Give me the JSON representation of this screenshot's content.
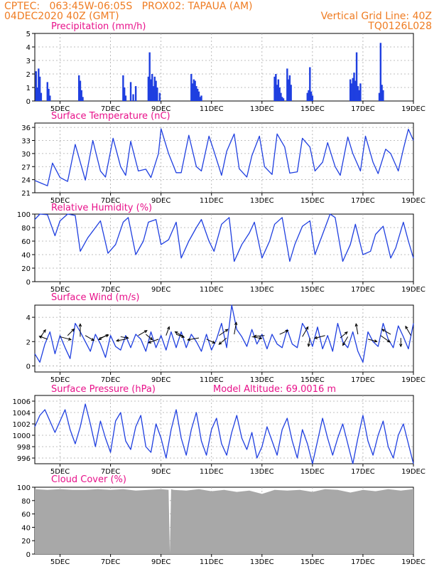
{
  "header": {
    "line1": "CPTEC:   063:45W-06:05S   PROX02: TAPAUA (AM)",
    "date": "04DEC2020 40Z (GMT)",
    "grid_note": "Vertical Grid Line: 40Z",
    "code": "TQ0126L028"
  },
  "colors": {
    "header": "#ef7c22",
    "panel_title": "#e8118a",
    "series": "#1f3fe0",
    "cloud": "#a8a8a8",
    "grid": "#aaaaaa"
  },
  "x_ticks": [
    "5DEC",
    "7DEC",
    "9DEC",
    "11DEC",
    "13DEC",
    "15DEC",
    "17DEC",
    "19DEC"
  ],
  "chart_data": [
    {
      "id": "precip",
      "type": "bar",
      "title": "Precipitation (mm/h)",
      "ylim": [
        0,
        5
      ],
      "yticks": [
        0,
        1,
        2,
        3,
        4,
        5
      ],
      "xrange": [
        4.0,
        19.0
      ],
      "x": [
        4.05,
        4.1,
        4.15,
        4.2,
        4.25,
        4.5,
        4.55,
        4.6,
        5.75,
        5.8,
        5.85,
        5.9,
        7.5,
        7.55,
        7.6,
        7.8,
        7.9,
        8.0,
        8.5,
        8.55,
        8.6,
        8.65,
        8.7,
        8.75,
        8.8,
        8.85,
        8.95,
        10.2,
        10.25,
        10.3,
        10.35,
        10.4,
        10.45,
        10.5,
        10.55,
        10.6,
        13.5,
        13.55,
        13.6,
        13.65,
        13.7,
        13.75,
        13.8,
        13.85,
        14.0,
        14.05,
        14.1,
        14.15,
        14.8,
        14.85,
        14.9,
        14.95,
        15.0,
        16.5,
        16.55,
        16.6,
        16.65,
        16.7,
        16.75,
        16.8,
        16.85,
        16.9,
        17.65,
        17.7,
        17.75,
        17.8
      ],
      "values": [
        2.2,
        1.0,
        2.4,
        1.8,
        0.6,
        1.4,
        0.9,
        0.4,
        1.9,
        1.5,
        0.8,
        0.3,
        1.9,
        1.0,
        0.4,
        1.4,
        0.5,
        1.1,
        1.8,
        3.6,
        1.6,
        2.0,
        1.1,
        1.8,
        1.5,
        1.0,
        0.6,
        2.0,
        1.3,
        1.6,
        1.5,
        1.1,
        0.9,
        0.7,
        0.3,
        0.4,
        1.8,
        2.0,
        1.2,
        1.6,
        1.0,
        0.6,
        0.3,
        0.2,
        2.4,
        1.6,
        1.9,
        1.2,
        0.6,
        0.8,
        2.5,
        0.7,
        0.4,
        1.6,
        1.3,
        1.7,
        2.1,
        1.5,
        3.6,
        1.1,
        0.8,
        1.3,
        0.6,
        4.3,
        1.2,
        0.8
      ]
    },
    {
      "id": "temp",
      "type": "line",
      "title": "Surface Temperature (nC)",
      "ylim": [
        21,
        37
      ],
      "yticks": [
        21,
        24,
        27,
        30,
        33,
        36
      ],
      "xrange": [
        4.0,
        19.0
      ],
      "x": [
        4.0,
        4.25,
        4.5,
        4.7,
        5.0,
        5.3,
        5.6,
        5.8,
        6.0,
        6.3,
        6.6,
        6.8,
        7.1,
        7.4,
        7.6,
        7.8,
        8.1,
        8.4,
        8.6,
        8.9,
        9.0,
        9.3,
        9.6,
        9.8,
        10.1,
        10.4,
        10.6,
        10.9,
        11.1,
        11.4,
        11.6,
        11.9,
        12.1,
        12.4,
        12.6,
        12.9,
        13.1,
        13.4,
        13.6,
        13.9,
        14.1,
        14.4,
        14.6,
        14.9,
        15.1,
        15.4,
        15.6,
        15.9,
        16.1,
        16.4,
        16.6,
        16.9,
        17.1,
        17.4,
        17.6,
        17.9,
        18.1,
        18.4,
        18.6,
        18.8,
        19.0
      ],
      "values": [
        23.8,
        23.2,
        22.6,
        27.8,
        24.5,
        23.6,
        32.1,
        28.0,
        23.9,
        33.0,
        26.0,
        24.6,
        33.5,
        27.0,
        25.0,
        32.8,
        26.0,
        26.4,
        24.5,
        30.0,
        35.7,
        30.0,
        25.6,
        25.6,
        34.2,
        27.0,
        26.0,
        34.0,
        30.5,
        25.0,
        30.5,
        34.5,
        26.5,
        24.6,
        29.5,
        34.0,
        27.0,
        25.2,
        34.5,
        31.5,
        25.5,
        25.8,
        33.5,
        31.5,
        26.0,
        28.0,
        32.5,
        27.0,
        25.0,
        33.8,
        30.0,
        26.0,
        34.0,
        28.0,
        25.4,
        31.0,
        30.0,
        26.0,
        31.0,
        35.6,
        33.0
      ]
    },
    {
      "id": "rh",
      "type": "line",
      "title": "Relative Humidity (%)",
      "ylim": [
        0,
        100
      ],
      "yticks": [
        0,
        20,
        40,
        60,
        80,
        100
      ],
      "xrange": [
        4.0,
        19.0
      ],
      "x": [
        4.0,
        4.2,
        4.5,
        4.8,
        5.0,
        5.3,
        5.6,
        5.8,
        6.1,
        6.4,
        6.6,
        6.9,
        7.2,
        7.5,
        7.7,
        8.0,
        8.3,
        8.5,
        8.8,
        9.0,
        9.3,
        9.6,
        9.8,
        10.1,
        10.4,
        10.6,
        10.9,
        11.1,
        11.4,
        11.7,
        11.9,
        12.2,
        12.5,
        12.7,
        13.0,
        13.3,
        13.5,
        13.8,
        14.1,
        14.3,
        14.6,
        14.9,
        15.1,
        15.4,
        15.7,
        15.9,
        16.2,
        16.5,
        16.7,
        17.0,
        17.3,
        17.5,
        17.8,
        18.1,
        18.3,
        18.6,
        18.8,
        19.0
      ],
      "values": [
        92,
        100,
        99,
        68,
        90,
        100,
        98,
        45,
        65,
        80,
        90,
        42,
        55,
        88,
        95,
        40,
        60,
        88,
        92,
        55,
        62,
        88,
        35,
        60,
        80,
        92,
        60,
        45,
        85,
        95,
        30,
        55,
        72,
        88,
        35,
        60,
        85,
        95,
        30,
        55,
        82,
        90,
        40,
        70,
        100,
        95,
        30,
        55,
        85,
        40,
        45,
        70,
        82,
        35,
        50,
        88,
        60,
        35
      ]
    },
    {
      "id": "wind",
      "type": "line",
      "title": "Surface Wind (m/s)",
      "ylim": [
        -0.5,
        5
      ],
      "yticks": [
        0,
        2,
        4
      ],
      "xrange": [
        4.0,
        19.0
      ],
      "x": [
        4.0,
        4.2,
        4.4,
        4.6,
        4.8,
        5.0,
        5.2,
        5.4,
        5.6,
        5.8,
        6.0,
        6.2,
        6.4,
        6.6,
        6.8,
        7.0,
        7.2,
        7.4,
        7.6,
        7.8,
        8.0,
        8.2,
        8.4,
        8.6,
        8.8,
        9.0,
        9.2,
        9.4,
        9.6,
        9.8,
        10.0,
        10.2,
        10.4,
        10.6,
        10.8,
        11.0,
        11.2,
        11.4,
        11.6,
        11.8,
        12.0,
        12.2,
        12.4,
        12.6,
        12.8,
        13.0,
        13.2,
        13.4,
        13.6,
        13.8,
        14.0,
        14.2,
        14.4,
        14.6,
        14.8,
        15.0,
        15.2,
        15.4,
        15.6,
        15.8,
        16.0,
        16.2,
        16.4,
        16.6,
        16.8,
        17.0,
        17.2,
        17.4,
        17.6,
        17.8,
        18.0,
        18.2,
        18.4,
        18.6,
        18.8,
        19.0
      ],
      "values": [
        1.0,
        0.3,
        1.8,
        2.8,
        1.0,
        2.5,
        1.5,
        0.6,
        3.5,
        2.8,
        2.0,
        1.2,
        2.6,
        1.8,
        0.7,
        2.5,
        1.6,
        1.3,
        2.5,
        1.5,
        2.6,
        2.2,
        1.2,
        2.8,
        1.5,
        2.5,
        1.3,
        2.8,
        1.5,
        2.8,
        1.5,
        2.6,
        2.0,
        1.2,
        2.6,
        1.3,
        2.2,
        3.5,
        1.5,
        5.0,
        3.0,
        2.4,
        1.6,
        3.0,
        1.8,
        2.6,
        1.4,
        2.6,
        1.8,
        1.5,
        3.0,
        1.8,
        1.5,
        3.5,
        2.8,
        1.6,
        3.2,
        1.4,
        2.5,
        1.2,
        3.5,
        2.0,
        1.5,
        2.8,
        1.2,
        0.3,
        2.8,
        2.0,
        1.6,
        3.5,
        2.2,
        1.5,
        3.3,
        2.4,
        1.4,
        3.5
      ]
    },
    {
      "id": "pressure",
      "type": "line",
      "title": "Surface Pressure (hPa)",
      "annotation": "Model Altitude: 69.0016 m",
      "ylim": [
        995,
        1007
      ],
      "yticks": [
        996,
        998,
        1000,
        1002,
        1004,
        1006
      ],
      "xrange": [
        4.0,
        19.0
      ],
      "x": [
        4.0,
        4.2,
        4.4,
        4.6,
        4.8,
        5.0,
        5.2,
        5.4,
        5.6,
        5.8,
        6.0,
        6.2,
        6.4,
        6.6,
        6.8,
        7.0,
        7.2,
        7.4,
        7.6,
        7.8,
        8.0,
        8.2,
        8.4,
        8.6,
        8.8,
        9.0,
        9.2,
        9.4,
        9.6,
        9.8,
        10.0,
        10.2,
        10.4,
        10.6,
        10.8,
        11.0,
        11.2,
        11.4,
        11.6,
        11.8,
        12.0,
        12.2,
        12.4,
        12.6,
        12.8,
        13.0,
        13.2,
        13.4,
        13.6,
        13.8,
        14.0,
        14.2,
        14.4,
        14.6,
        14.8,
        15.0,
        15.2,
        15.4,
        15.6,
        15.8,
        16.0,
        16.2,
        16.4,
        16.6,
        16.8,
        17.0,
        17.2,
        17.4,
        17.6,
        17.8,
        18.0,
        18.2,
        18.4,
        18.6,
        18.8,
        19.0
      ],
      "values": [
        1001.5,
        1003.5,
        1004.5,
        1002.5,
        1000.5,
        1002.5,
        1004.5,
        1001.0,
        998.5,
        1001.5,
        1005.5,
        1002.0,
        998.0,
        1002.5,
        999.5,
        997.0,
        1002.5,
        1004.0,
        999.0,
        997.5,
        1001.5,
        1003.5,
        998.0,
        997.0,
        1002.0,
        999.5,
        996.0,
        1001.0,
        1004.5,
        999.5,
        996.5,
        1001.0,
        1004.0,
        999.0,
        996.5,
        1001.0,
        1003.0,
        998.5,
        996.5,
        1000.5,
        1003.5,
        999.5,
        997.5,
        1000.5,
        996.0,
        998.0,
        1001.5,
        999.0,
        996.5,
        1001.0,
        1003.0,
        999.0,
        996.0,
        1001.0,
        998.5,
        995.0,
        999.0,
        1003.0,
        999.5,
        996.5,
        999.5,
        1002.0,
        998.5,
        995.0,
        999.5,
        1003.5,
        999.0,
        996.5,
        1000.0,
        1002.5,
        998.0,
        996.0,
        1000.0,
        1002.0,
        998.5,
        995.0
      ]
    },
    {
      "id": "cloud",
      "type": "area",
      "title": "Cloud Cover (%)",
      "ylim": [
        0,
        100
      ],
      "yticks": [
        0,
        20,
        40,
        60,
        80,
        100
      ],
      "xrange": [
        4.0,
        19.0
      ],
      "x": [
        4.0,
        4.5,
        5.0,
        5.5,
        6.0,
        6.5,
        7.0,
        7.5,
        8.0,
        8.5,
        9.0,
        9.3,
        9.35,
        9.4,
        9.5,
        10.0,
        10.5,
        11.0,
        11.5,
        12.0,
        12.5,
        13.0,
        13.5,
        14.0,
        14.5,
        15.0,
        15.5,
        16.0,
        16.5,
        17.0,
        17.5,
        18.0,
        18.5,
        19.0
      ],
      "values": [
        97,
        96,
        97,
        96,
        96,
        97,
        96,
        97,
        95,
        96,
        97,
        96,
        2,
        97,
        96,
        95,
        97,
        94,
        96,
        93,
        95,
        90,
        96,
        95,
        96,
        93,
        97,
        96,
        92,
        96,
        94,
        97,
        95,
        97
      ]
    }
  ],
  "wind_barbs": {
    "x": [
      4.2,
      4.5,
      5.0,
      5.3,
      5.8,
      6.0,
      6.6,
      6.9,
      7.4,
      7.6,
      8.1,
      8.4,
      8.9,
      9.2,
      9.6,
      9.9,
      10.5,
      10.8,
      11.3,
      11.6,
      11.9,
      12.6,
      13.1,
      13.7,
      14.6,
      14.9,
      15.5,
      16.1,
      16.4,
      16.8,
      17.2,
      17.7,
      18.1,
      18.5,
      18.9
    ],
    "y": [
      2.3,
      2.2,
      2.4,
      2.5,
      2.4,
      2.5,
      2.3,
      2.6,
      2.4,
      2.2,
      2.5,
      2.6,
      2.2,
      2.5,
      2.6,
      2.4,
      2.3,
      2.2,
      2.5,
      2.3,
      2.6,
      2.4,
      2.5,
      2.6,
      2.4,
      2.3,
      2.5,
      2.3,
      2.4,
      2.6,
      2.2,
      2.5,
      2.6,
      2.3,
      2.5
    ],
    "angle": [
      -55,
      -160,
      15,
      -45,
      -90,
      30,
      -20,
      150,
      10,
      170,
      -30,
      40,
      160,
      -70,
      20,
      -150,
      170,
      25,
      -35,
      140,
      -80,
      10,
      175,
      -25,
      -60,
      100,
      165,
      -40,
      120,
      -100,
      15,
      35,
      -150,
      90,
      -120
    ],
    "len": [
      1.4,
      1.2,
      1.6,
      1.3,
      1.8,
      1.4,
      1.2,
      1.5,
      1.1,
      1.3,
      1.4,
      1.2,
      1.5,
      1.3,
      1.2,
      1.4,
      1.6,
      1.3,
      1.5,
      1.4,
      1.7,
      1.4,
      1.5,
      1.3,
      1.6,
      1.2,
      1.5,
      1.3,
      1.4,
      1.5,
      1.3,
      1.6,
      1.4,
      1.2,
      1.5
    ]
  }
}
